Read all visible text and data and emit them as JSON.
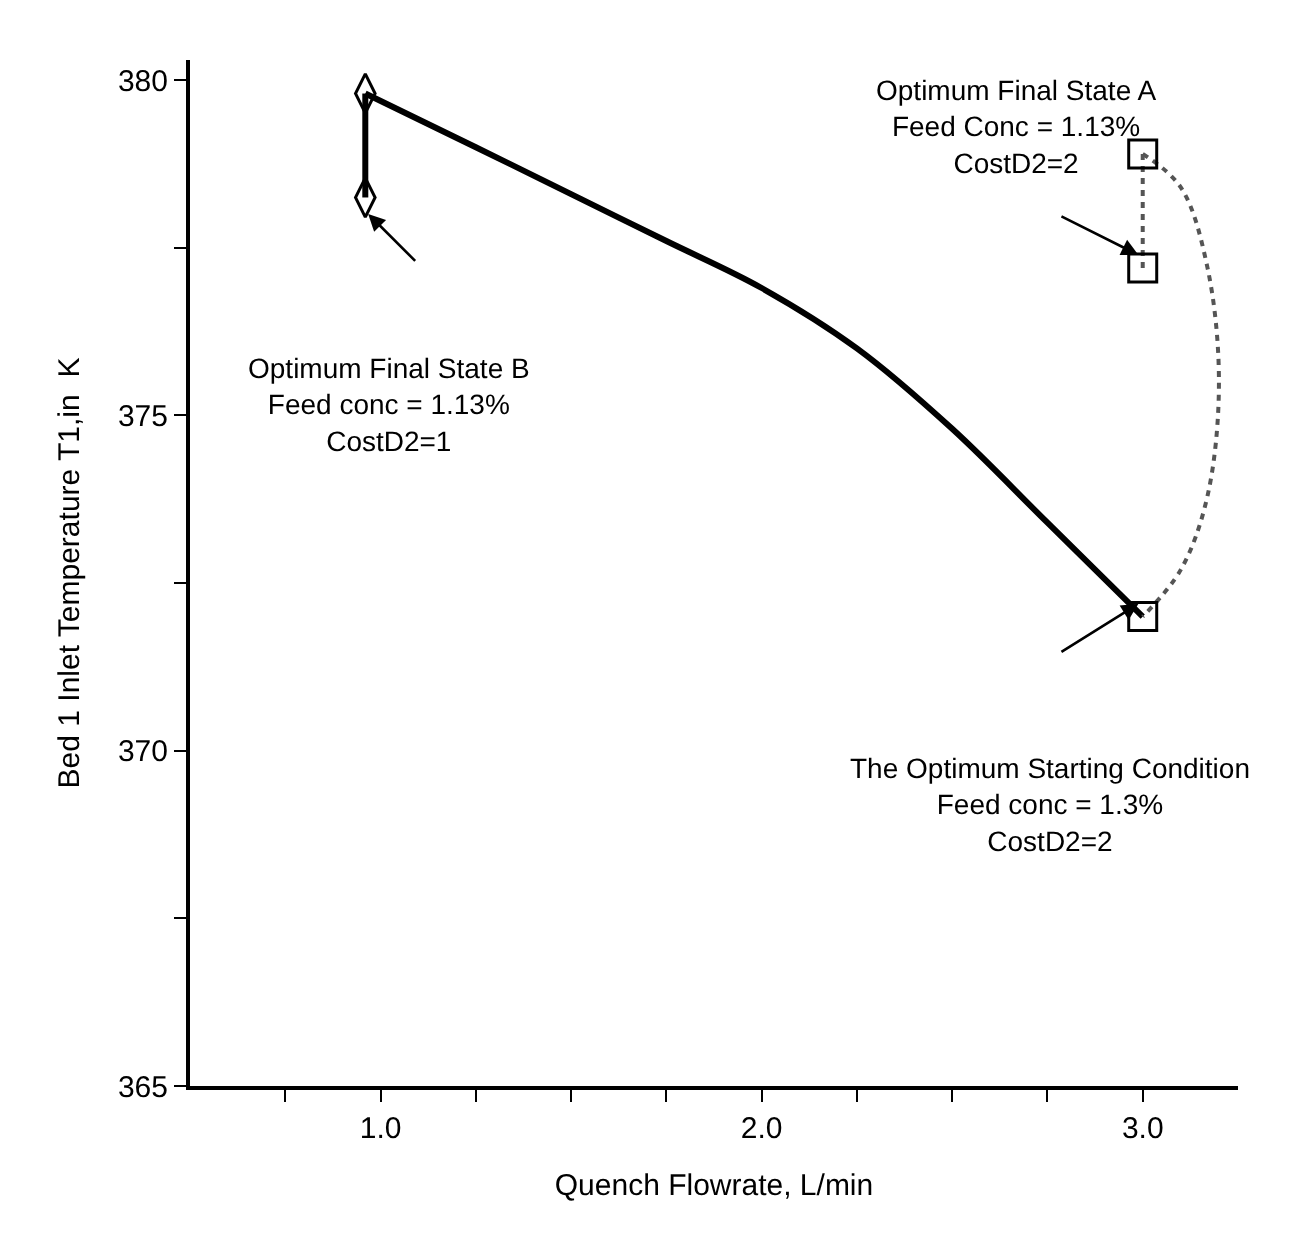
{
  "chart_data": {
    "type": "line",
    "xlabel": "Quench Flowrate, L/min",
    "ylabel": "Bed 1 Inlet Temperature T1,in  K",
    "xlim": [
      0.5,
      3.25
    ],
    "ylim": [
      365,
      380.3
    ],
    "xticks": [
      {
        "value": 0.75,
        "label": null
      },
      {
        "value": 1,
        "label": "1.0"
      },
      {
        "value": 1.25,
        "label": null
      },
      {
        "value": 1.5,
        "label": null
      },
      {
        "value": 1.75,
        "label": null
      },
      {
        "value": 2,
        "label": "2.0"
      },
      {
        "value": 2.25,
        "label": null
      },
      {
        "value": 2.5,
        "label": null
      },
      {
        "value": 2.75,
        "label": null
      },
      {
        "value": 3,
        "label": "3.0"
      }
    ],
    "yticks": [
      365,
      {
        "value": 367.5,
        "label": null
      },
      370,
      {
        "value": 372.5,
        "label": null
      },
      375,
      {
        "value": 377.5,
        "label": null
      },
      380
    ],
    "series": [
      {
        "color": "#000000",
        "x": [
          0.96,
          1.25,
          1.5,
          1.75,
          2.0,
          2.25,
          2.5,
          2.75,
          3.0
        ],
        "values": [
          379.8,
          379.0,
          378.3,
          377.6,
          376.9,
          376.0,
          374.8,
          373.4,
          372.0
        ],
        "line_style": "solid"
      },
      {
        "color": "#000000",
        "x": [
          0.96,
          0.96
        ],
        "values": [
          379.8,
          378.25
        ],
        "line_style": "solid"
      },
      {
        "color": "#555555",
        "x": [
          3.0,
          3.1,
          3.17,
          3.2,
          3.17,
          3.1,
          3.0
        ],
        "values": [
          378.9,
          378.4,
          377.2,
          375.5,
          373.8,
          372.7,
          372.0
        ],
        "line_style": "dotted"
      },
      {
        "color": "#555555",
        "x": [
          3.0,
          3.0
        ],
        "values": [
          378.9,
          377.2
        ],
        "line_style": "dotted"
      },
      {
        "type": "scatter",
        "color": "#000000",
        "x": [
          0.96,
          0.96
        ],
        "values": [
          379.8,
          378.25
        ],
        "marker": "diamond"
      },
      {
        "type": "scatter",
        "color": "#000000",
        "x": [
          3.0,
          3.0,
          3.0
        ],
        "values": [
          378.9,
          377.2,
          372.0
        ],
        "marker": "square"
      }
    ],
    "annotations": [
      "Optimum Final State A\nFeed Conc = 1.13%\nCostD2=2",
      "Optimum Final State B\nFeed conc = 1.13%\nCostD2=1",
      "The Optimum Starting Condition\nFeed conc = 1.3%\nCostD2=2"
    ]
  }
}
